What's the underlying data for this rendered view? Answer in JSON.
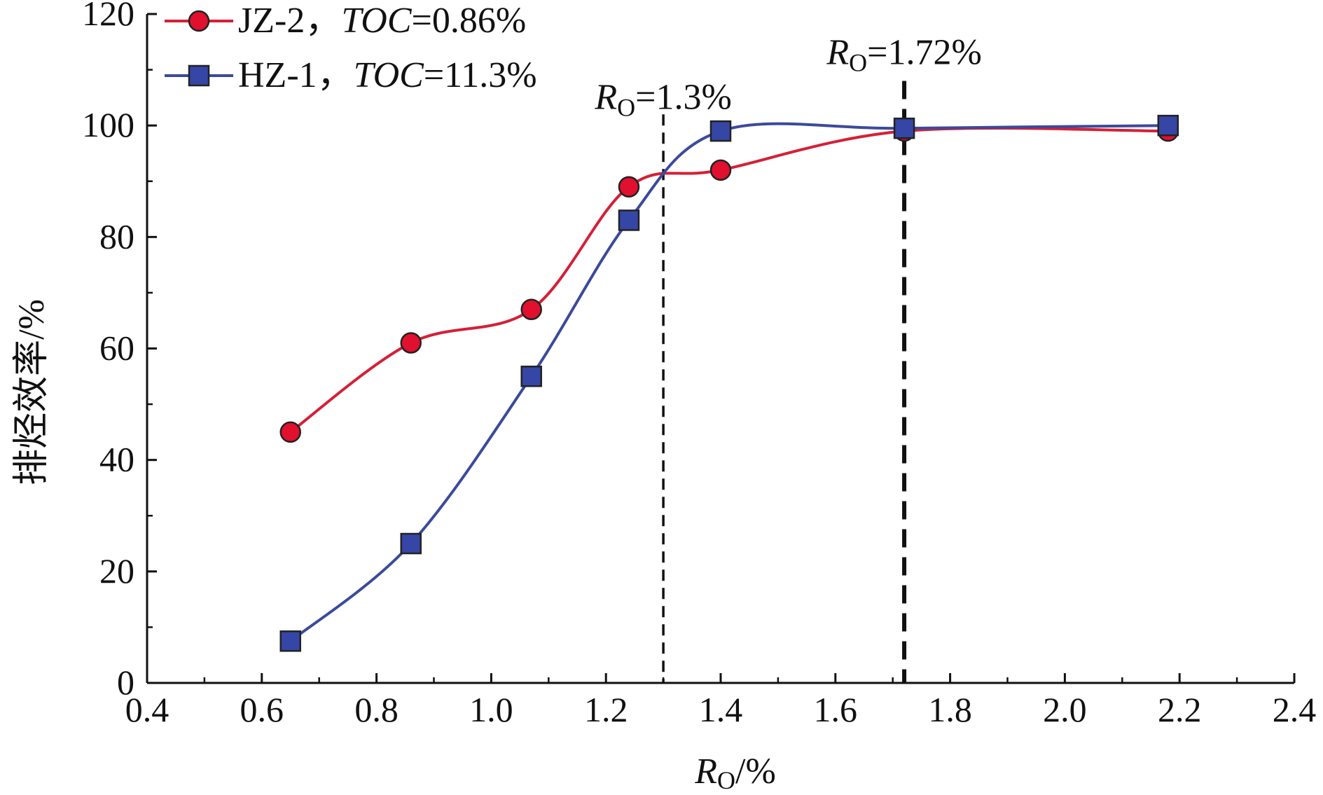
{
  "chart_data": {
    "type": "line",
    "xlabel": {
      "main": "R",
      "sub": "O",
      "rest": "/%"
    },
    "ylabel": "排烃效率/%",
    "xlim": [
      0.4,
      2.4
    ],
    "ylim": [
      0,
      120
    ],
    "xticks": [
      0.4,
      0.6,
      0.8,
      1.0,
      1.2,
      1.4,
      1.6,
      1.8,
      2.0,
      2.2,
      2.4
    ],
    "xtick_labels": [
      "0.4",
      "0.6",
      "0.8",
      "1.0",
      "1.2",
      "1.4",
      "1.6",
      "1.8",
      "2.0",
      "2.2",
      "2.4"
    ],
    "yticks": [
      0,
      20,
      40,
      60,
      80,
      100,
      120
    ],
    "ytick_labels": [
      "0",
      "20",
      "40",
      "60",
      "80",
      "100",
      "120"
    ],
    "grid": false,
    "legend_position": "top-left",
    "series": [
      {
        "name_prefix": "JZ-2，",
        "name_var": "TOC",
        "name_value": "=0.86%",
        "marker": "circle",
        "color": "#d42037",
        "marker_fill": "#e0102e",
        "x": [
          0.65,
          0.86,
          1.07,
          1.24,
          1.4,
          1.72,
          2.18
        ],
        "y": [
          45,
          61,
          67,
          89,
          92,
          99,
          99
        ]
      },
      {
        "name_prefix": "HZ-1，",
        "name_var": "TOC",
        "name_value": "=11.3%",
        "marker": "square",
        "color": "#3b4a9a",
        "marker_fill": "#3646a6",
        "x": [
          0.65,
          0.86,
          1.07,
          1.24,
          1.4,
          1.72,
          2.18
        ],
        "y": [
          7.5,
          25,
          55,
          83,
          99,
          99.5,
          100
        ]
      }
    ],
    "annotations": [
      {
        "x": 1.3,
        "main": "R",
        "sub": "O",
        "rest": "=1.3%",
        "style": "thin-dashed",
        "label_y": 103
      },
      {
        "x": 1.72,
        "main": "R",
        "sub": "O",
        "rest": "=1.72%",
        "style": "thick-dashed",
        "label_y": 111
      }
    ]
  }
}
